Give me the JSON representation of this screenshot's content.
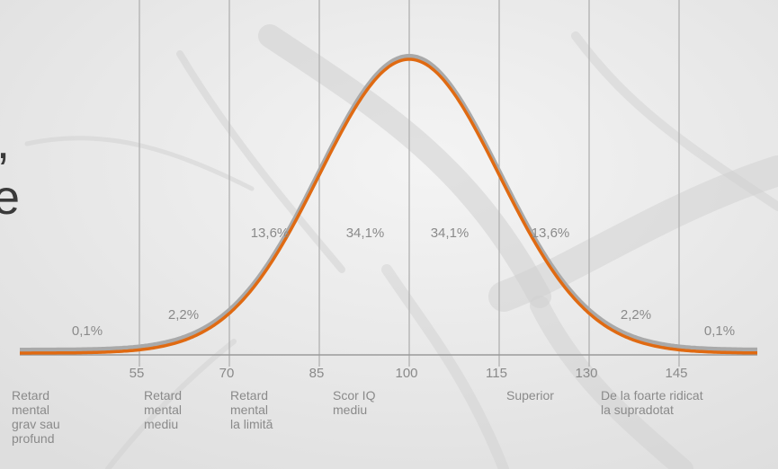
{
  "chart_data": {
    "type": "area",
    "title": "",
    "xlabel": "",
    "ylabel": "",
    "xlim": [
      15,
      160
    ],
    "distribution": {
      "mean": 100,
      "sd": 15
    },
    "x_ticks": [
      55,
      70,
      85,
      100,
      115,
      130,
      145
    ],
    "bands": [
      {
        "range": [
          15,
          55
        ],
        "percent": "0,1%",
        "label": "Retard\nmental\ngrav sau\nprofund"
      },
      {
        "range": [
          55,
          70
        ],
        "percent": "2,2%",
        "label": "Retard\nmental\nmediu"
      },
      {
        "range": [
          70,
          85
        ],
        "percent": "13,6%",
        "label": "Retard\nmental\nla limită"
      },
      {
        "range": [
          85,
          100
        ],
        "percent": "34,1%",
        "label": "Scor IQ\nmediu"
      },
      {
        "range": [
          100,
          115
        ],
        "percent": "34,1%",
        "label": ""
      },
      {
        "range": [
          115,
          130
        ],
        "percent": "13,6%",
        "label": "Superior"
      },
      {
        "range": [
          130,
          145
        ],
        "percent": "2,2%",
        "label": "De la foarte ridicat\nla supradotat"
      },
      {
        "range": [
          145,
          160
        ],
        "percent": "0,1%",
        "label": ""
      }
    ],
    "colors": {
      "curve": "#e06a12",
      "curve_shadow": "#a9a9a9",
      "grid": "#b4b4b4",
      "text": "#8a8a8a"
    },
    "grid": true
  },
  "side_text": [
    ",",
    "e"
  ]
}
